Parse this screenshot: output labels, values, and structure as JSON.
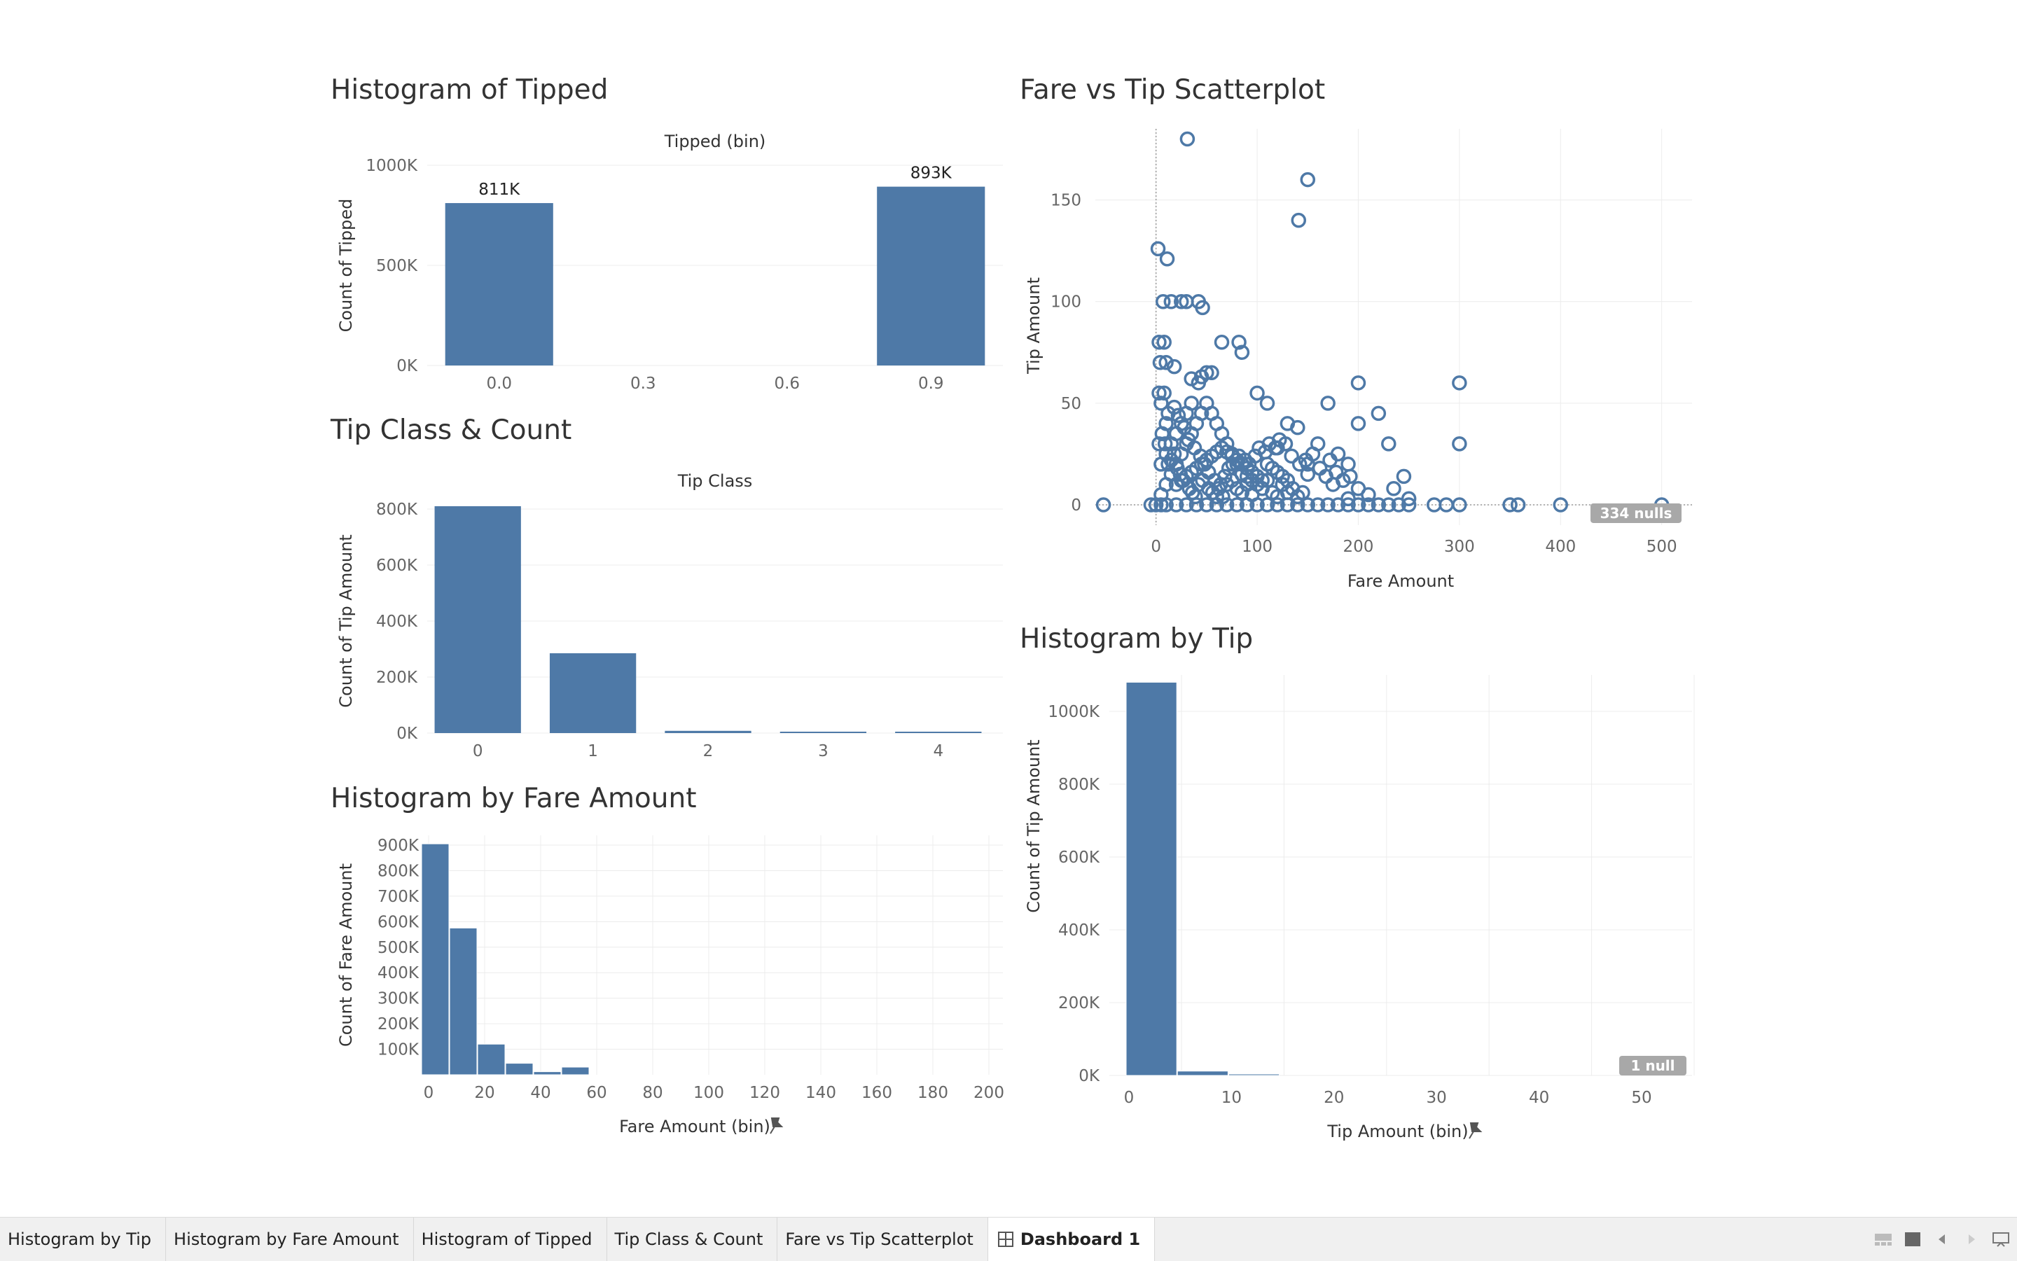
{
  "colors": {
    "bar": "#4e79a7",
    "grid": "#ececec",
    "badge": "#a8a8a8"
  },
  "panels": {
    "tipped": {
      "title": "Histogram of Tipped"
    },
    "tipclass": {
      "title": "Tip Class & Count"
    },
    "fare_hist": {
      "title": "Histogram by Fare Amount"
    },
    "scatter": {
      "title": "Fare vs Tip Scatterplot",
      "null_badge": "334 nulls"
    },
    "tip_hist": {
      "title": "Histogram by Tip",
      "null_badge": "1 null"
    }
  },
  "chart_data": [
    {
      "id": "tipped",
      "type": "bar",
      "header": "Tipped (bin)",
      "categories": [
        "0.0",
        "0.3",
        "0.6",
        "0.9"
      ],
      "values": [
        811000,
        0,
        0,
        893000
      ],
      "data_labels": [
        "811K",
        "",
        "",
        "893K"
      ],
      "xlabel": "",
      "ylabel": "Count of Tipped",
      "ylim": [
        0,
        1000000
      ],
      "yticks": [
        0,
        500000,
        1000000
      ],
      "ytick_labels": [
        "0K",
        "500K",
        "1000K"
      ],
      "grid": true
    },
    {
      "id": "tipclass",
      "type": "bar",
      "header": "Tip Class",
      "categories": [
        "0",
        "1",
        "2",
        "3",
        "4"
      ],
      "values": [
        810000,
        285000,
        8000,
        3000,
        500
      ],
      "xlabel": "",
      "ylabel": "Count of Tip Amount",
      "ylim": [
        0,
        800000
      ],
      "yticks": [
        0,
        200000,
        400000,
        600000,
        800000
      ],
      "ytick_labels": [
        "0K",
        "200K",
        "400K",
        "600K",
        "800K"
      ],
      "grid": true
    },
    {
      "id": "fare_hist",
      "type": "bar",
      "bin_width": 10,
      "bins": [
        0,
        10,
        20,
        30,
        40,
        50
      ],
      "values": [
        905000,
        575000,
        120000,
        45000,
        12000,
        30000
      ],
      "xlabel": "Fare Amount (bin)",
      "ylabel": "Count of Fare Amount",
      "xlim": [
        0,
        200
      ],
      "xticks": [
        0,
        20,
        40,
        60,
        80,
        100,
        120,
        140,
        160,
        180,
        200
      ],
      "ylim": [
        0,
        900000
      ],
      "yticks": [
        100000,
        200000,
        300000,
        400000,
        500000,
        600000,
        700000,
        800000,
        900000
      ],
      "ytick_labels": [
        "100K",
        "200K",
        "300K",
        "400K",
        "500K",
        "600K",
        "700K",
        "800K",
        "900K"
      ],
      "grid": true
    },
    {
      "id": "scatter",
      "type": "scatter",
      "xlabel": "Fare Amount",
      "ylabel": "Tip Amount",
      "xlim": [
        -60,
        530
      ],
      "ylim": [
        -10,
        185
      ],
      "xticks": [
        0,
        100,
        200,
        300,
        400,
        500
      ],
      "yticks": [
        0,
        50,
        100,
        150
      ],
      "grid": true,
      "points": [
        [
          -52,
          0
        ],
        [
          -5,
          0
        ],
        [
          0,
          0
        ],
        [
          5,
          0
        ],
        [
          10,
          0
        ],
        [
          20,
          0
        ],
        [
          30,
          0
        ],
        [
          40,
          0
        ],
        [
          50,
          0
        ],
        [
          60,
          0
        ],
        [
          70,
          0
        ],
        [
          80,
          0
        ],
        [
          90,
          0
        ],
        [
          100,
          0
        ],
        [
          110,
          0
        ],
        [
          120,
          0
        ],
        [
          130,
          0
        ],
        [
          140,
          0
        ],
        [
          150,
          0
        ],
        [
          160,
          0
        ],
        [
          170,
          0
        ],
        [
          180,
          0
        ],
        [
          190,
          0
        ],
        [
          200,
          0
        ],
        [
          210,
          0
        ],
        [
          220,
          0
        ],
        [
          230,
          0
        ],
        [
          240,
          0
        ],
        [
          250,
          0
        ],
        [
          275,
          0
        ],
        [
          287,
          0
        ],
        [
          300,
          0
        ],
        [
          350,
          0
        ],
        [
          358,
          0
        ],
        [
          400,
          0
        ],
        [
          500,
          0
        ],
        [
          31,
          180
        ],
        [
          150,
          160
        ],
        [
          141,
          140
        ],
        [
          2,
          126
        ],
        [
          11,
          121
        ],
        [
          25,
          100
        ],
        [
          30,
          100
        ],
        [
          42,
          100
        ],
        [
          46,
          97
        ],
        [
          15,
          100
        ],
        [
          7,
          100
        ],
        [
          65,
          80
        ],
        [
          82,
          80
        ],
        [
          85,
          75
        ],
        [
          3,
          80
        ],
        [
          8,
          80
        ],
        [
          4,
          70
        ],
        [
          10,
          70
        ],
        [
          18,
          68
        ],
        [
          35,
          62
        ],
        [
          42,
          60
        ],
        [
          45,
          63
        ],
        [
          55,
          65
        ],
        [
          50,
          65
        ],
        [
          200,
          60
        ],
        [
          300,
          60
        ],
        [
          100,
          55
        ],
        [
          170,
          50
        ],
        [
          110,
          50
        ],
        [
          220,
          45
        ],
        [
          200,
          40
        ],
        [
          230,
          30
        ],
        [
          300,
          30
        ],
        [
          245,
          14
        ],
        [
          190,
          20
        ],
        [
          180,
          25
        ],
        [
          160,
          30
        ],
        [
          150,
          20
        ],
        [
          140,
          38
        ],
        [
          130,
          40
        ],
        [
          120,
          28
        ],
        [
          150,
          15
        ],
        [
          175,
          10
        ],
        [
          200,
          8
        ],
        [
          210,
          5
        ],
        [
          190,
          3
        ],
        [
          235,
          8
        ],
        [
          250,
          3
        ],
        [
          5,
          5
        ],
        [
          10,
          10
        ],
        [
          15,
          15
        ],
        [
          20,
          20
        ],
        [
          25,
          25
        ],
        [
          30,
          30
        ],
        [
          35,
          35
        ],
        [
          40,
          40
        ],
        [
          45,
          45
        ],
        [
          50,
          50
        ],
        [
          55,
          45
        ],
        [
          60,
          40
        ],
        [
          65,
          35
        ],
        [
          70,
          30
        ],
        [
          75,
          25
        ],
        [
          80,
          20
        ],
        [
          85,
          15
        ],
        [
          90,
          10
        ],
        [
          95,
          5
        ],
        [
          5,
          20
        ],
        [
          10,
          25
        ],
        [
          15,
          30
        ],
        [
          20,
          35
        ],
        [
          25,
          40
        ],
        [
          30,
          45
        ],
        [
          35,
          50
        ],
        [
          10,
          40
        ],
        [
          5,
          50
        ],
        [
          3,
          55
        ],
        [
          8,
          55
        ],
        [
          12,
          45
        ],
        [
          18,
          48
        ],
        [
          22,
          44
        ],
        [
          28,
          38
        ],
        [
          32,
          32
        ],
        [
          38,
          28
        ],
        [
          44,
          24
        ],
        [
          48,
          20
        ],
        [
          52,
          16
        ],
        [
          58,
          12
        ],
        [
          62,
          8
        ],
        [
          66,
          4
        ],
        [
          70,
          10
        ],
        [
          75,
          12
        ],
        [
          80,
          8
        ],
        [
          85,
          6
        ],
        [
          90,
          14
        ],
        [
          95,
          12
        ],
        [
          100,
          10
        ],
        [
          105,
          8
        ],
        [
          110,
          12
        ],
        [
          115,
          6
        ],
        [
          120,
          4
        ],
        [
          125,
          10
        ],
        [
          130,
          6
        ],
        [
          135,
          8
        ],
        [
          140,
          4
        ],
        [
          145,
          6
        ],
        [
          20,
          10
        ],
        [
          25,
          12
        ],
        [
          30,
          14
        ],
        [
          35,
          16
        ],
        [
          40,
          18
        ],
        [
          45,
          20
        ],
        [
          50,
          22
        ],
        [
          55,
          24
        ],
        [
          60,
          26
        ],
        [
          65,
          28
        ],
        [
          70,
          26
        ],
        [
          75,
          24
        ],
        [
          80,
          22
        ],
        [
          85,
          20
        ],
        [
          90,
          18
        ],
        [
          95,
          16
        ],
        [
          100,
          14
        ],
        [
          105,
          12
        ],
        [
          110,
          20
        ],
        [
          115,
          18
        ],
        [
          120,
          16
        ],
        [
          125,
          14
        ],
        [
          130,
          12
        ],
        [
          3,
          30
        ],
        [
          6,
          35
        ],
        [
          9,
          30
        ],
        [
          12,
          20
        ],
        [
          15,
          22
        ],
        [
          18,
          25
        ],
        [
          21,
          18
        ],
        [
          24,
          15
        ],
        [
          27,
          12
        ],
        [
          33,
          8
        ],
        [
          36,
          6
        ],
        [
          39,
          4
        ],
        [
          42,
          10
        ],
        [
          46,
          12
        ],
        [
          52,
          8
        ],
        [
          56,
          6
        ],
        [
          60,
          4
        ],
        [
          64,
          10
        ],
        [
          68,
          14
        ],
        [
          72,
          18
        ],
        [
          76,
          20
        ],
        [
          82,
          24
        ],
        [
          88,
          22
        ],
        [
          92,
          20
        ],
        [
          98,
          24
        ],
        [
          102,
          28
        ],
        [
          108,
          26
        ],
        [
          112,
          30
        ],
        [
          118,
          28
        ],
        [
          122,
          32
        ],
        [
          128,
          30
        ],
        [
          134,
          24
        ],
        [
          142,
          20
        ],
        [
          148,
          22
        ],
        [
          155,
          25
        ],
        [
          162,
          18
        ],
        [
          168,
          14
        ],
        [
          172,
          22
        ],
        [
          178,
          16
        ],
        [
          185,
          12
        ],
        [
          192,
          14
        ]
      ]
    },
    {
      "id": "tip_hist",
      "type": "bar",
      "bin_width": 5,
      "bins": [
        0,
        5,
        10
      ],
      "values": [
        1080000,
        12000,
        2000
      ],
      "xlabel": "Tip Amount (bin)",
      "ylabel": "Count of Tip Amount",
      "xlim": [
        -2,
        49
      ],
      "xticks": [
        0,
        10,
        20,
        30,
        40,
        50
      ],
      "ylim": [
        0,
        1100000
      ],
      "yticks": [
        0,
        200000,
        400000,
        600000,
        800000,
        1000000
      ],
      "ytick_labels": [
        "0K",
        "200K",
        "400K",
        "600K",
        "800K",
        "1000K"
      ],
      "grid": true
    }
  ],
  "tabs": [
    {
      "label": "Histogram by Tip",
      "active": false
    },
    {
      "label": "Histogram by Fare Amount",
      "active": false
    },
    {
      "label": "Histogram of Tipped",
      "active": false
    },
    {
      "label": "Tip Class & Count",
      "active": false
    },
    {
      "label": "Fare vs Tip Scatterplot",
      "active": false
    },
    {
      "label": "Dashboard 1",
      "active": true,
      "icon": "dashboard-grid-icon"
    }
  ],
  "status_icons": [
    "filmstrip-view-icon",
    "tab-view-icon",
    "previous-sheet-icon",
    "next-sheet-icon",
    "presentation-mode-icon"
  ]
}
